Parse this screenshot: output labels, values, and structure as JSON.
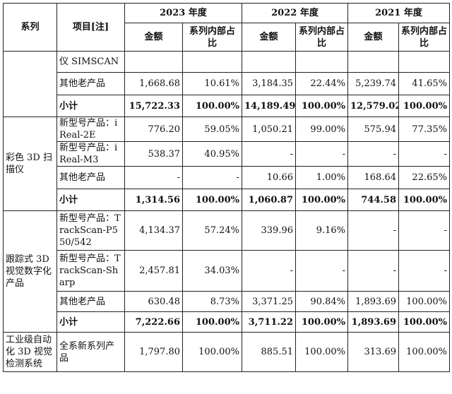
{
  "header": {
    "series": "系列",
    "item": "项目[注]",
    "years": [
      "2023 年度",
      "2022 年度",
      "2021 年度"
    ],
    "amount": "金额",
    "ratio": "系列内部占比"
  },
  "groups": [
    {
      "series": "",
      "rows": [
        {
          "item": "仪 SIMSCAN",
          "cells": [
            "",
            "",
            "",
            "",
            "",
            ""
          ]
        },
        {
          "item": "其他老产品",
          "cells": [
            "1,668.68",
            "10.61%",
            "3,184.35",
            "22.44%",
            "5,239.74",
            "41.65%"
          ]
        },
        {
          "item": "小计",
          "cells": [
            "15,722.33",
            "100.00%",
            "14,189.49",
            "100.00%",
            "12,579.02",
            "100.00%"
          ]
        }
      ]
    },
    {
      "series": "彩色 3D 扫描仪",
      "rows": [
        {
          "item": "新型号产品：iReal-2E",
          "cells": [
            "776.20",
            "59.05%",
            "1,050.21",
            "99.00%",
            "575.94",
            "77.35%"
          ]
        },
        {
          "item": "新型号产品：iReal-M3",
          "cells": [
            "538.37",
            "40.95%",
            "-",
            "-",
            "-",
            "-"
          ]
        },
        {
          "item": "其他老产品",
          "cells": [
            "-",
            "-",
            "10.66",
            "1.00%",
            "168.64",
            "22.65%"
          ]
        },
        {
          "item": "小计",
          "cells": [
            "1,314.56",
            "100.00%",
            "1,060.87",
            "100.00%",
            "744.58",
            "100.00%"
          ]
        }
      ]
    },
    {
      "series": "跟踪式 3D 视觉数字化产品",
      "rows": [
        {
          "item": "新型号产品：TrackScan-P550/542",
          "cells": [
            "4,134.37",
            "57.24%",
            "339.96",
            "9.16%",
            "-",
            "-"
          ]
        },
        {
          "item": "新型号产品：TrackScan-Sharp",
          "cells": [
            "2,457.81",
            "34.03%",
            "-",
            "-",
            "-",
            "-"
          ]
        },
        {
          "item": "其他老产品",
          "cells": [
            "630.48",
            "8.73%",
            "3,371.25",
            "90.84%",
            "1,893.69",
            "100.00%"
          ]
        },
        {
          "item": "小计",
          "cells": [
            "7,222.66",
            "100.00%",
            "3,711.22",
            "100.00%",
            "1,893.69",
            "100.00%"
          ]
        }
      ]
    },
    {
      "series": "工业级自动化 3D 视觉检测系统",
      "rows": [
        {
          "item": "全系新系列产品",
          "cells": [
            "1,797.80",
            "100.00%",
            "885.51",
            "100.00%",
            "313.69",
            "100.00%"
          ]
        }
      ]
    }
  ]
}
